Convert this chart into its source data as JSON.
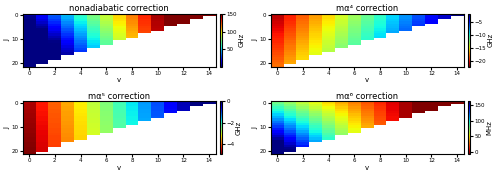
{
  "titles": [
    "nonadiabatic correction",
    "mα⁴ correction",
    "mα⁵ correction",
    "mα⁶ correction"
  ],
  "J_max": 21,
  "v_max": 14,
  "xlabel": "v",
  "ylabel": "J",
  "vmins": [
    0,
    -22,
    -5,
    -6
  ],
  "vmaxs": [
    150,
    -2,
    0,
    160
  ],
  "cbar_labels": [
    "GHz",
    "GHz",
    "GHz",
    "MHz"
  ],
  "cbar_ticks": [
    [
      50,
      100,
      150
    ],
    [
      -20,
      -15,
      -10,
      -5
    ],
    [
      -4,
      -2,
      0
    ],
    []
  ],
  "xticks": [
    0,
    2,
    4,
    6,
    8,
    10,
    12,
    14
  ],
  "yticks": [
    0,
    10,
    20
  ]
}
